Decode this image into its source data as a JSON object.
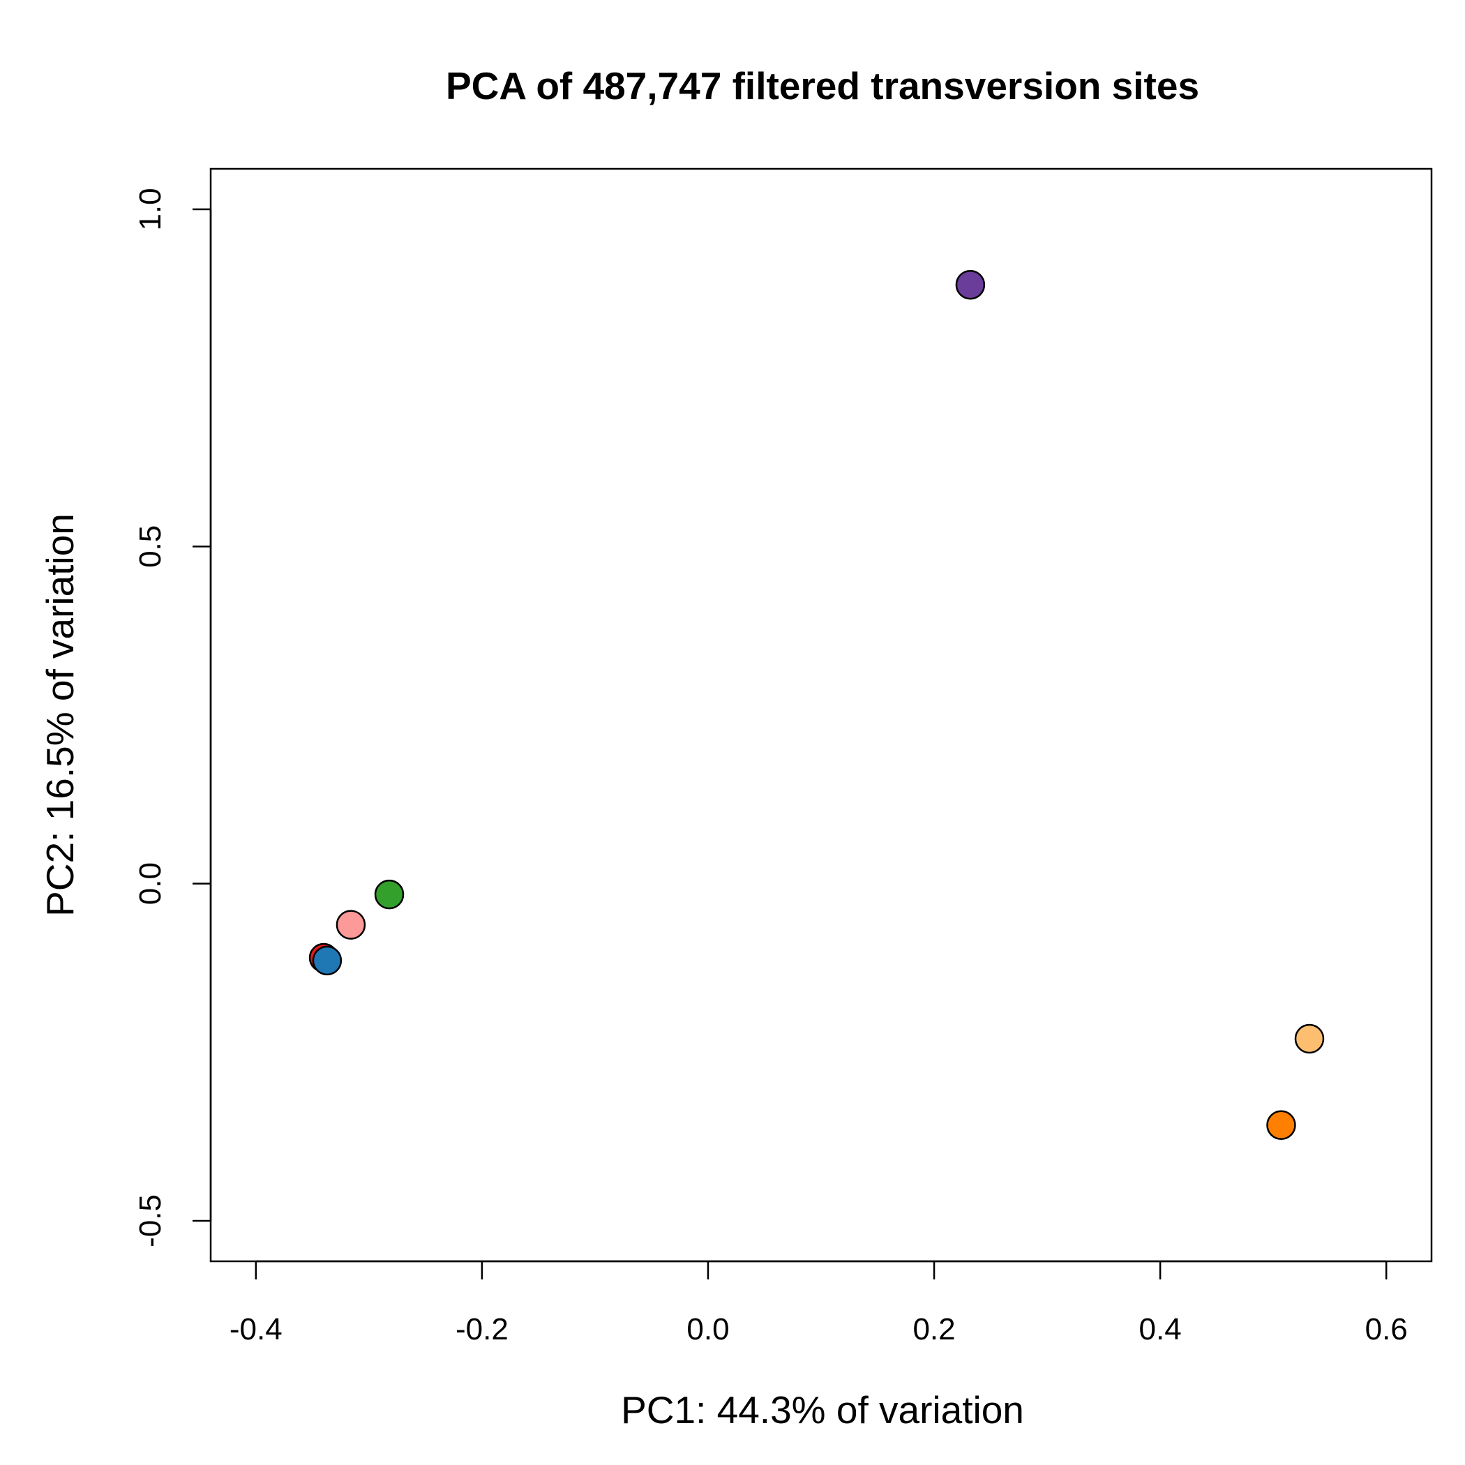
{
  "chart_data": {
    "type": "scatter",
    "title": "PCA of 487,747 filtered transversion sites",
    "xlabel": "PC1: 44.3% of variation",
    "ylabel": "PC2: 16.5% of variation",
    "xlim": [
      -0.44,
      0.64
    ],
    "ylim": [
      -0.56,
      1.06
    ],
    "x_ticks": [
      -0.4,
      -0.2,
      0.0,
      0.2,
      0.4,
      0.6
    ],
    "x_tick_labels": [
      "-0.4",
      "-0.2",
      "0.0",
      "0.2",
      "0.4",
      "0.6"
    ],
    "y_ticks": [
      -0.5,
      0.0,
      0.5,
      1.0
    ],
    "y_tick_labels": [
      "-0.5",
      "0.0",
      "0.5",
      "1.0"
    ],
    "grid": false,
    "legend": "none",
    "points": [
      {
        "x": 0.232,
        "y": 0.888,
        "color": "#6a3d9a"
      },
      {
        "x": -0.282,
        "y": -0.016,
        "color": "#33a02c"
      },
      {
        "x": -0.316,
        "y": -0.061,
        "color": "#fb9a99"
      },
      {
        "x": -0.34,
        "y": -0.11,
        "color": "#e31a1c"
      },
      {
        "x": -0.337,
        "y": -0.114,
        "color": "#1f78b4"
      },
      {
        "x": 0.532,
        "y": -0.23,
        "color": "#fdbf6f"
      },
      {
        "x": 0.507,
        "y": -0.358,
        "color": "#ff7f00"
      }
    ]
  }
}
